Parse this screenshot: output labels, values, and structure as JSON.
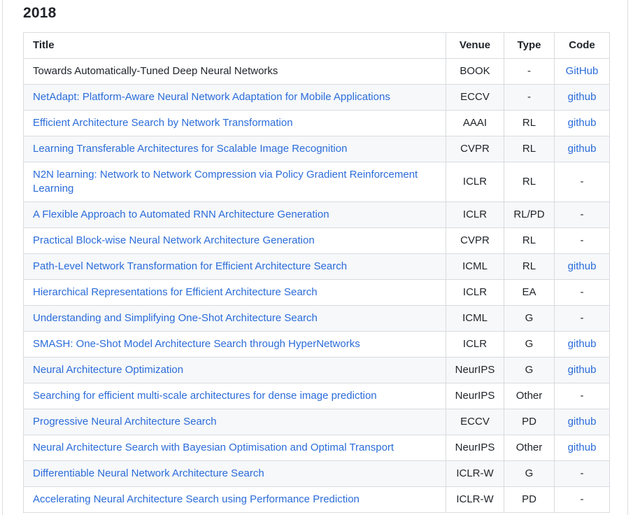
{
  "section": {
    "year": "2018"
  },
  "table": {
    "headers": {
      "title": "Title",
      "venue": "Venue",
      "type": "Type",
      "code": "Code"
    },
    "rows": [
      {
        "title": "Towards Automatically-Tuned Deep Neural Networks",
        "title_is_link": false,
        "venue": "BOOK",
        "type": "-",
        "code": "GitHub",
        "code_is_link": true
      },
      {
        "title": "NetAdapt: Platform-Aware Neural Network Adaptation for Mobile Applications",
        "title_is_link": true,
        "venue": "ECCV",
        "type": "-",
        "code": "github",
        "code_is_link": true
      },
      {
        "title": "Efficient Architecture Search by Network Transformation",
        "title_is_link": true,
        "venue": "AAAI",
        "type": "RL",
        "code": "github",
        "code_is_link": true
      },
      {
        "title": "Learning Transferable Architectures for Scalable Image Recognition",
        "title_is_link": true,
        "venue": "CVPR",
        "type": "RL",
        "code": "github",
        "code_is_link": true
      },
      {
        "title": "N2N learning: Network to Network Compression via Policy Gradient Reinforcement Learning",
        "title_is_link": true,
        "venue": "ICLR",
        "type": "RL",
        "code": "-",
        "code_is_link": false
      },
      {
        "title": "A Flexible Approach to Automated RNN Architecture Generation",
        "title_is_link": true,
        "venue": "ICLR",
        "type": "RL/PD",
        "code": "-",
        "code_is_link": false
      },
      {
        "title": "Practical Block-wise Neural Network Architecture Generation",
        "title_is_link": true,
        "venue": "CVPR",
        "type": "RL",
        "code": "-",
        "code_is_link": false
      },
      {
        "title": "Path-Level Network Transformation for Efficient Architecture Search",
        "title_is_link": true,
        "venue": "ICML",
        "type": "RL",
        "code": "github",
        "code_is_link": true
      },
      {
        "title": "Hierarchical Representations for Efficient Architecture Search",
        "title_is_link": true,
        "venue": "ICLR",
        "type": "EA",
        "code": "-",
        "code_is_link": false
      },
      {
        "title": "Understanding and Simplifying One-Shot Architecture Search",
        "title_is_link": true,
        "venue": "ICML",
        "type": "G",
        "code": "-",
        "code_is_link": false
      },
      {
        "title": "SMASH: One-Shot Model Architecture Search through HyperNetworks",
        "title_is_link": true,
        "venue": "ICLR",
        "type": "G",
        "code": "github",
        "code_is_link": true
      },
      {
        "title": "Neural Architecture Optimization",
        "title_is_link": true,
        "venue": "NeurIPS",
        "type": "G",
        "code": "github",
        "code_is_link": true
      },
      {
        "title": "Searching for efficient multi-scale architectures for dense image prediction",
        "title_is_link": true,
        "venue": "NeurIPS",
        "type": "Other",
        "code": "-",
        "code_is_link": false
      },
      {
        "title": "Progressive Neural Architecture Search",
        "title_is_link": true,
        "venue": "ECCV",
        "type": "PD",
        "code": "github",
        "code_is_link": true
      },
      {
        "title": "Neural Architecture Search with Bayesian Optimisation and Optimal Transport",
        "title_is_link": true,
        "venue": "NeurIPS",
        "type": "Other",
        "code": "github",
        "code_is_link": true
      },
      {
        "title": "Differentiable Neural Network Architecture Search",
        "title_is_link": true,
        "venue": "ICLR-W",
        "type": "G",
        "code": "-",
        "code_is_link": false
      },
      {
        "title": "Accelerating Neural Architecture Search using Performance Prediction",
        "title_is_link": true,
        "venue": "ICLR-W",
        "type": "PD",
        "code": "-",
        "code_is_link": false
      }
    ]
  },
  "colors": {
    "link": "#2b6cd9",
    "text": "#1f2328",
    "heading": "#1f2328",
    "border": "#d9dbde",
    "stripe": "#f6f8fa",
    "edge": "#d9dcdf"
  }
}
